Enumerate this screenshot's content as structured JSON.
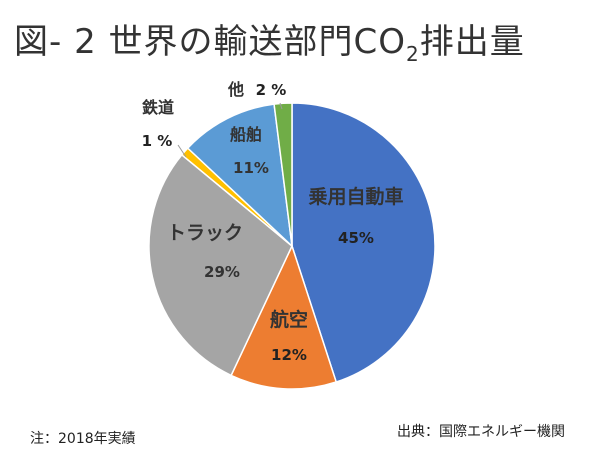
{
  "title": {
    "prefix": "図- 2 世界の輸送部門CO",
    "subscript": "2",
    "suffix": "排出量"
  },
  "chart_data": {
    "type": "pie",
    "unit": "%",
    "slices": [
      {
        "label": "乗用自動車",
        "value": 45,
        "value_label": "45%",
        "color": "#4472C4"
      },
      {
        "label": "航空",
        "value": 12,
        "value_label": "12%",
        "color": "#ED7D31"
      },
      {
        "label": "トラック",
        "value": 29,
        "value_label": "29%",
        "color": "#A5A5A5"
      },
      {
        "label": "鉄道",
        "value": 1,
        "value_label": "1 %",
        "color": "#FFC000"
      },
      {
        "label": "船舶",
        "value": 11,
        "value_label": "11%",
        "color": "#5B9BD5"
      },
      {
        "label": "他",
        "value": 2,
        "value_label": "2 %",
        "color": "#70AD47"
      }
    ]
  },
  "note": "注：2018年実績",
  "source": "出典：国際エネルギー機関"
}
